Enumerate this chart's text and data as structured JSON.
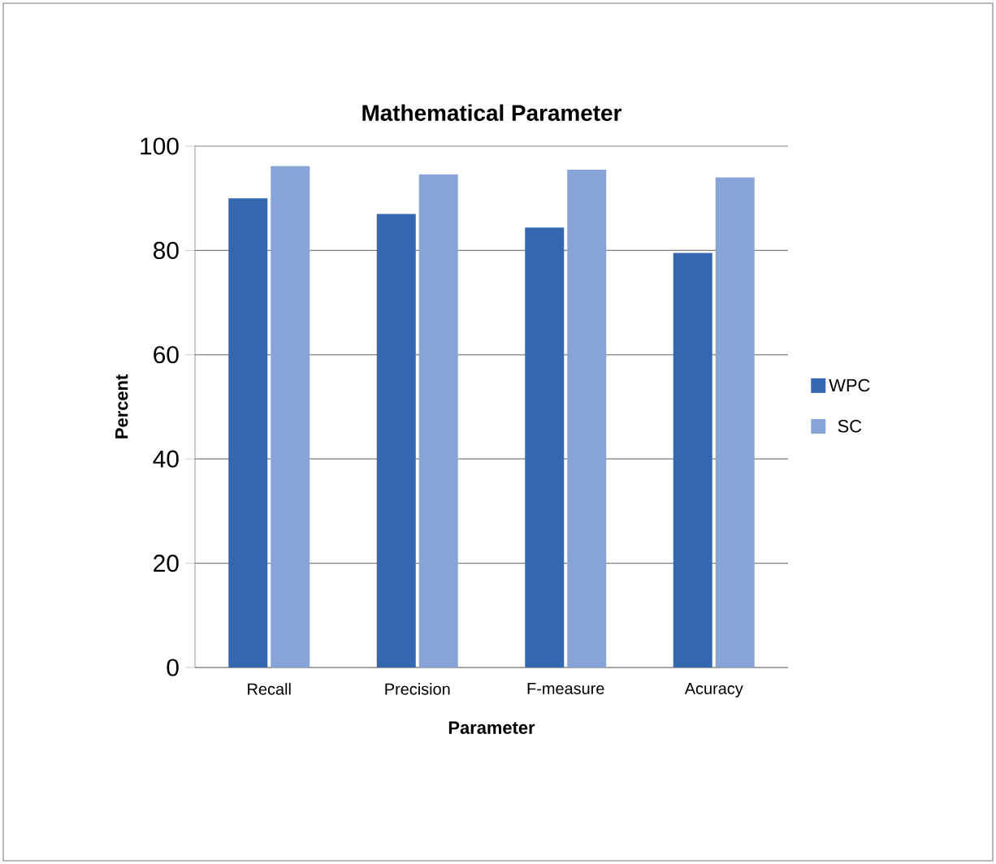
{
  "chart_data": {
    "type": "bar",
    "title": "Mathematical Parameter",
    "xlabel": "Parameter",
    "ylabel": "Percent",
    "categories": [
      "Recall",
      "Precision",
      "F-measure",
      "Acuracy"
    ],
    "series": [
      {
        "name": "WPC",
        "color": "#3566b0",
        "values": [
          90,
          87,
          84.4,
          79.5
        ]
      },
      {
        "name": "SC",
        "color": "#88a4d6",
        "values": [
          96.2,
          94.6,
          95.5,
          94
        ]
      }
    ],
    "ylim": [
      0,
      100
    ],
    "yticks": [
      0,
      20,
      40,
      60,
      80,
      100
    ],
    "grid": "y",
    "legend": "right"
  }
}
